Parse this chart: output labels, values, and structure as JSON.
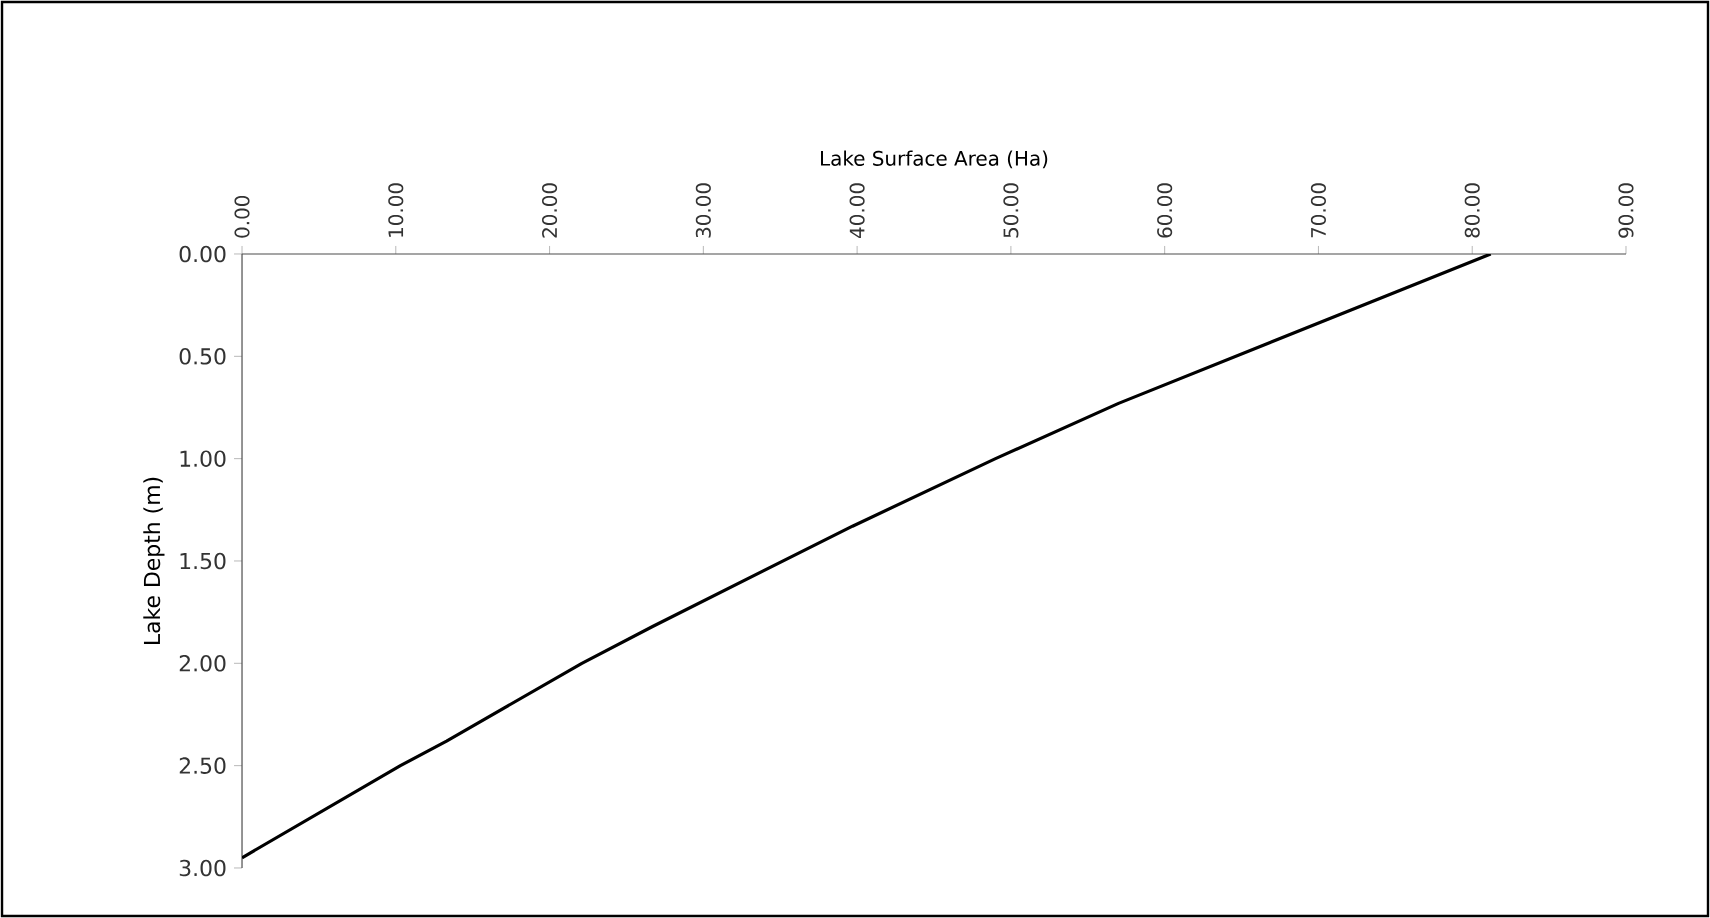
{
  "chart_data": {
    "type": "line",
    "xlabel": "Lake Surface Area (Ha)",
    "ylabel": "Lake Depth (m)",
    "series": [
      {
        "color": "#000000",
        "x": [
          81.2,
          57,
          49,
          39.7,
          26.7,
          22.1,
          13.3,
          10.3,
          0
        ],
        "values": [
          0,
          0.73,
          1.0,
          1.33,
          1.82,
          2.0,
          2.38,
          2.5,
          2.95
        ]
      }
    ],
    "xlim": [
      0,
      90
    ],
    "ylim": [
      3,
      0
    ],
    "xticks": [
      {
        "value": 0,
        "label": "0.00"
      },
      {
        "value": 10,
        "label": "10.00"
      },
      {
        "value": 20,
        "label": "20.00"
      },
      {
        "value": 30,
        "label": "30.00"
      },
      {
        "value": 40,
        "label": "40.00"
      },
      {
        "value": 50,
        "label": "50.00"
      },
      {
        "value": 60,
        "label": "60.00"
      },
      {
        "value": 70,
        "label": "70.00"
      },
      {
        "value": 80,
        "label": "80.00"
      },
      {
        "value": 90,
        "label": "90.00"
      }
    ],
    "yticks": [
      {
        "value": 0,
        "label": "0.00"
      },
      {
        "value": 0.5,
        "label": "0.50"
      },
      {
        "value": 1,
        "label": "1.00"
      },
      {
        "value": 1.5,
        "label": "1.50"
      },
      {
        "value": 2,
        "label": "2.00"
      },
      {
        "value": 2.5,
        "label": "2.50"
      },
      {
        "value": 3,
        "label": "3.00"
      }
    ],
    "marker": "none",
    "line_style": "solid"
  }
}
